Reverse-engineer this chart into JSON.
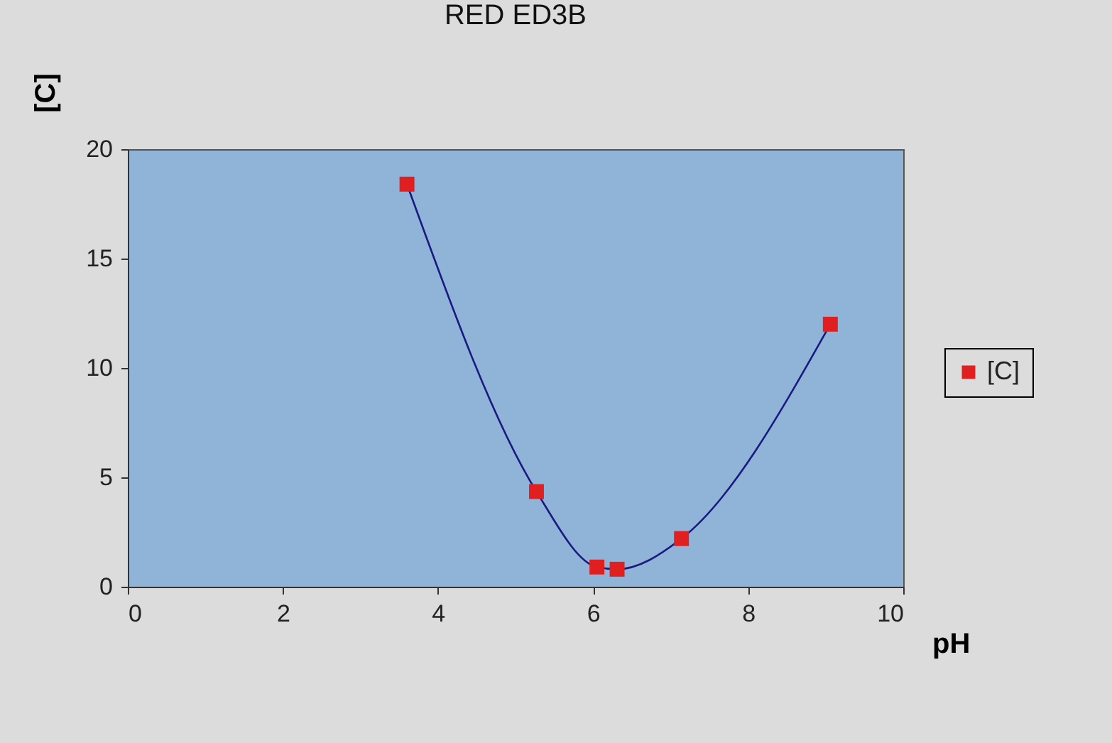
{
  "chart_data": {
    "type": "line",
    "title": "RED ED3B",
    "xlabel": "pH",
    "ylabel": "[C]",
    "x": [
      3.6,
      5.27,
      6.05,
      6.31,
      7.14,
      9.06
    ],
    "series": [
      {
        "name": "[C]",
        "color": "#e02020",
        "values": [
          18.4,
          4.35,
          0.9,
          0.8,
          2.2,
          12.0
        ]
      }
    ],
    "xlim": [
      0,
      10
    ],
    "xticks": [
      0,
      2,
      4,
      6,
      8,
      10
    ],
    "ylim": [
      0,
      20
    ],
    "yticks": [
      0,
      5,
      10,
      15,
      20
    ],
    "grid": false,
    "legend": "right",
    "marker": "square",
    "line_style": "solid"
  }
}
